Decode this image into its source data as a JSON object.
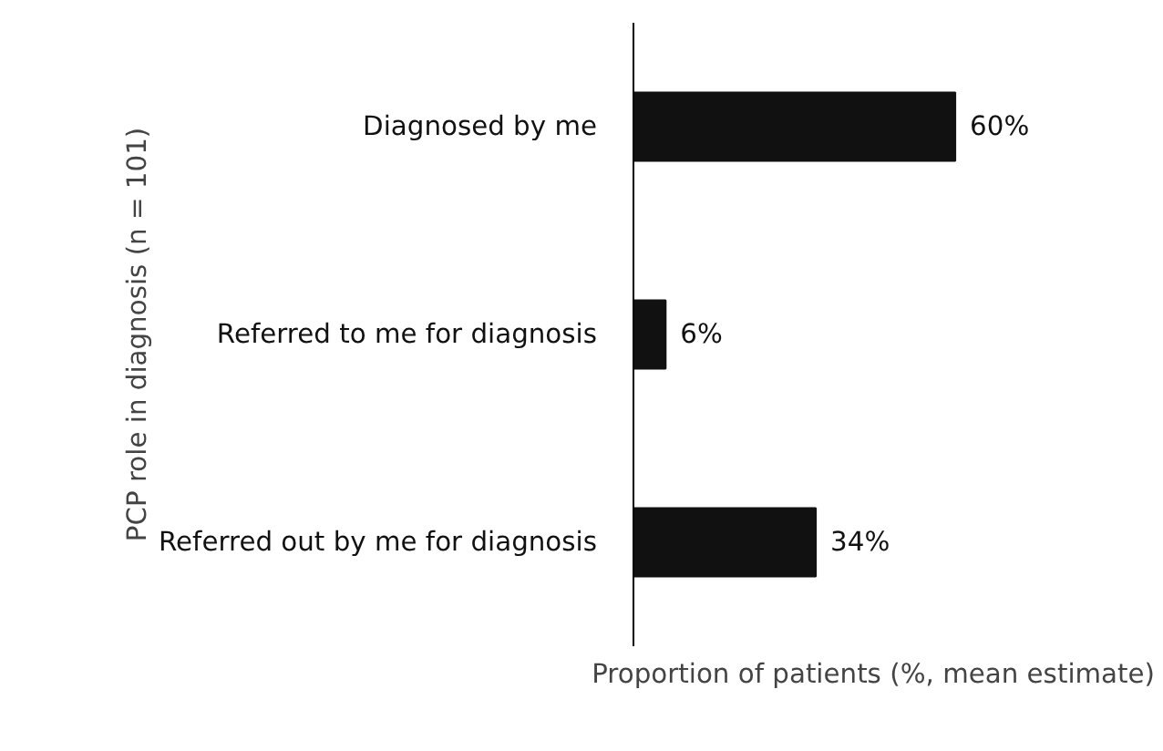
{
  "chart_data": {
    "type": "bar",
    "orientation": "horizontal",
    "categories": [
      "Diagnosed by me",
      "Referred to me for diagnosis",
      "Referred out by me for diagnosis"
    ],
    "values": [
      60,
      6,
      34
    ],
    "color": "#111111",
    "data_labels": true,
    "value_labels": [
      "60%",
      "6%",
      "34%"
    ],
    "xlabel": "Proportion of patients (%, mean estimate)",
    "ylabel": "PCP role in diagnosis (n = 101)",
    "grid": false,
    "tick_labels": "y"
  }
}
